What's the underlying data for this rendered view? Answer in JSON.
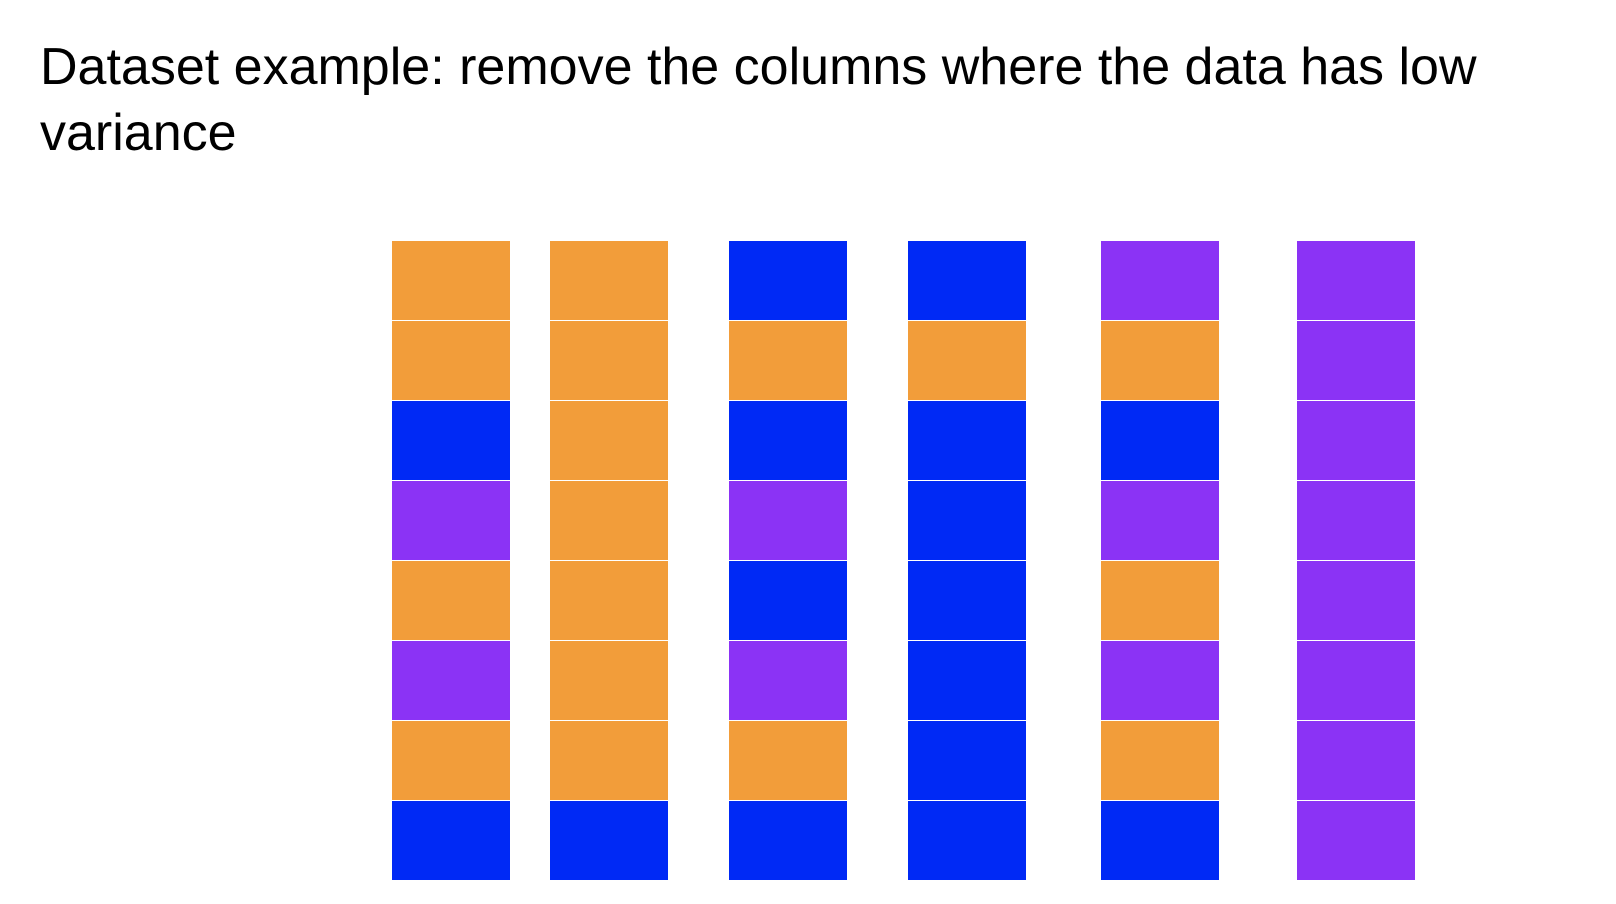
{
  "title": "Dataset example: remove the columns where the data has low variance",
  "colors": {
    "orange": "#f29d3a",
    "blue": "#0029f5",
    "purple": "#8b33f5"
  },
  "columns": [
    [
      "orange",
      "orange",
      "blue",
      "purple",
      "orange",
      "purple",
      "orange",
      "blue"
    ],
    [
      "orange",
      "orange",
      "orange",
      "orange",
      "orange",
      "orange",
      "orange",
      "blue"
    ],
    [
      "blue",
      "orange",
      "blue",
      "purple",
      "blue",
      "purple",
      "orange",
      "blue"
    ],
    [
      "blue",
      "orange",
      "blue",
      "blue",
      "blue",
      "blue",
      "blue",
      "blue"
    ],
    [
      "purple",
      "orange",
      "blue",
      "purple",
      "orange",
      "purple",
      "orange",
      "blue"
    ],
    [
      "purple",
      "purple",
      "purple",
      "purple",
      "purple",
      "purple",
      "purple",
      "purple"
    ]
  ]
}
